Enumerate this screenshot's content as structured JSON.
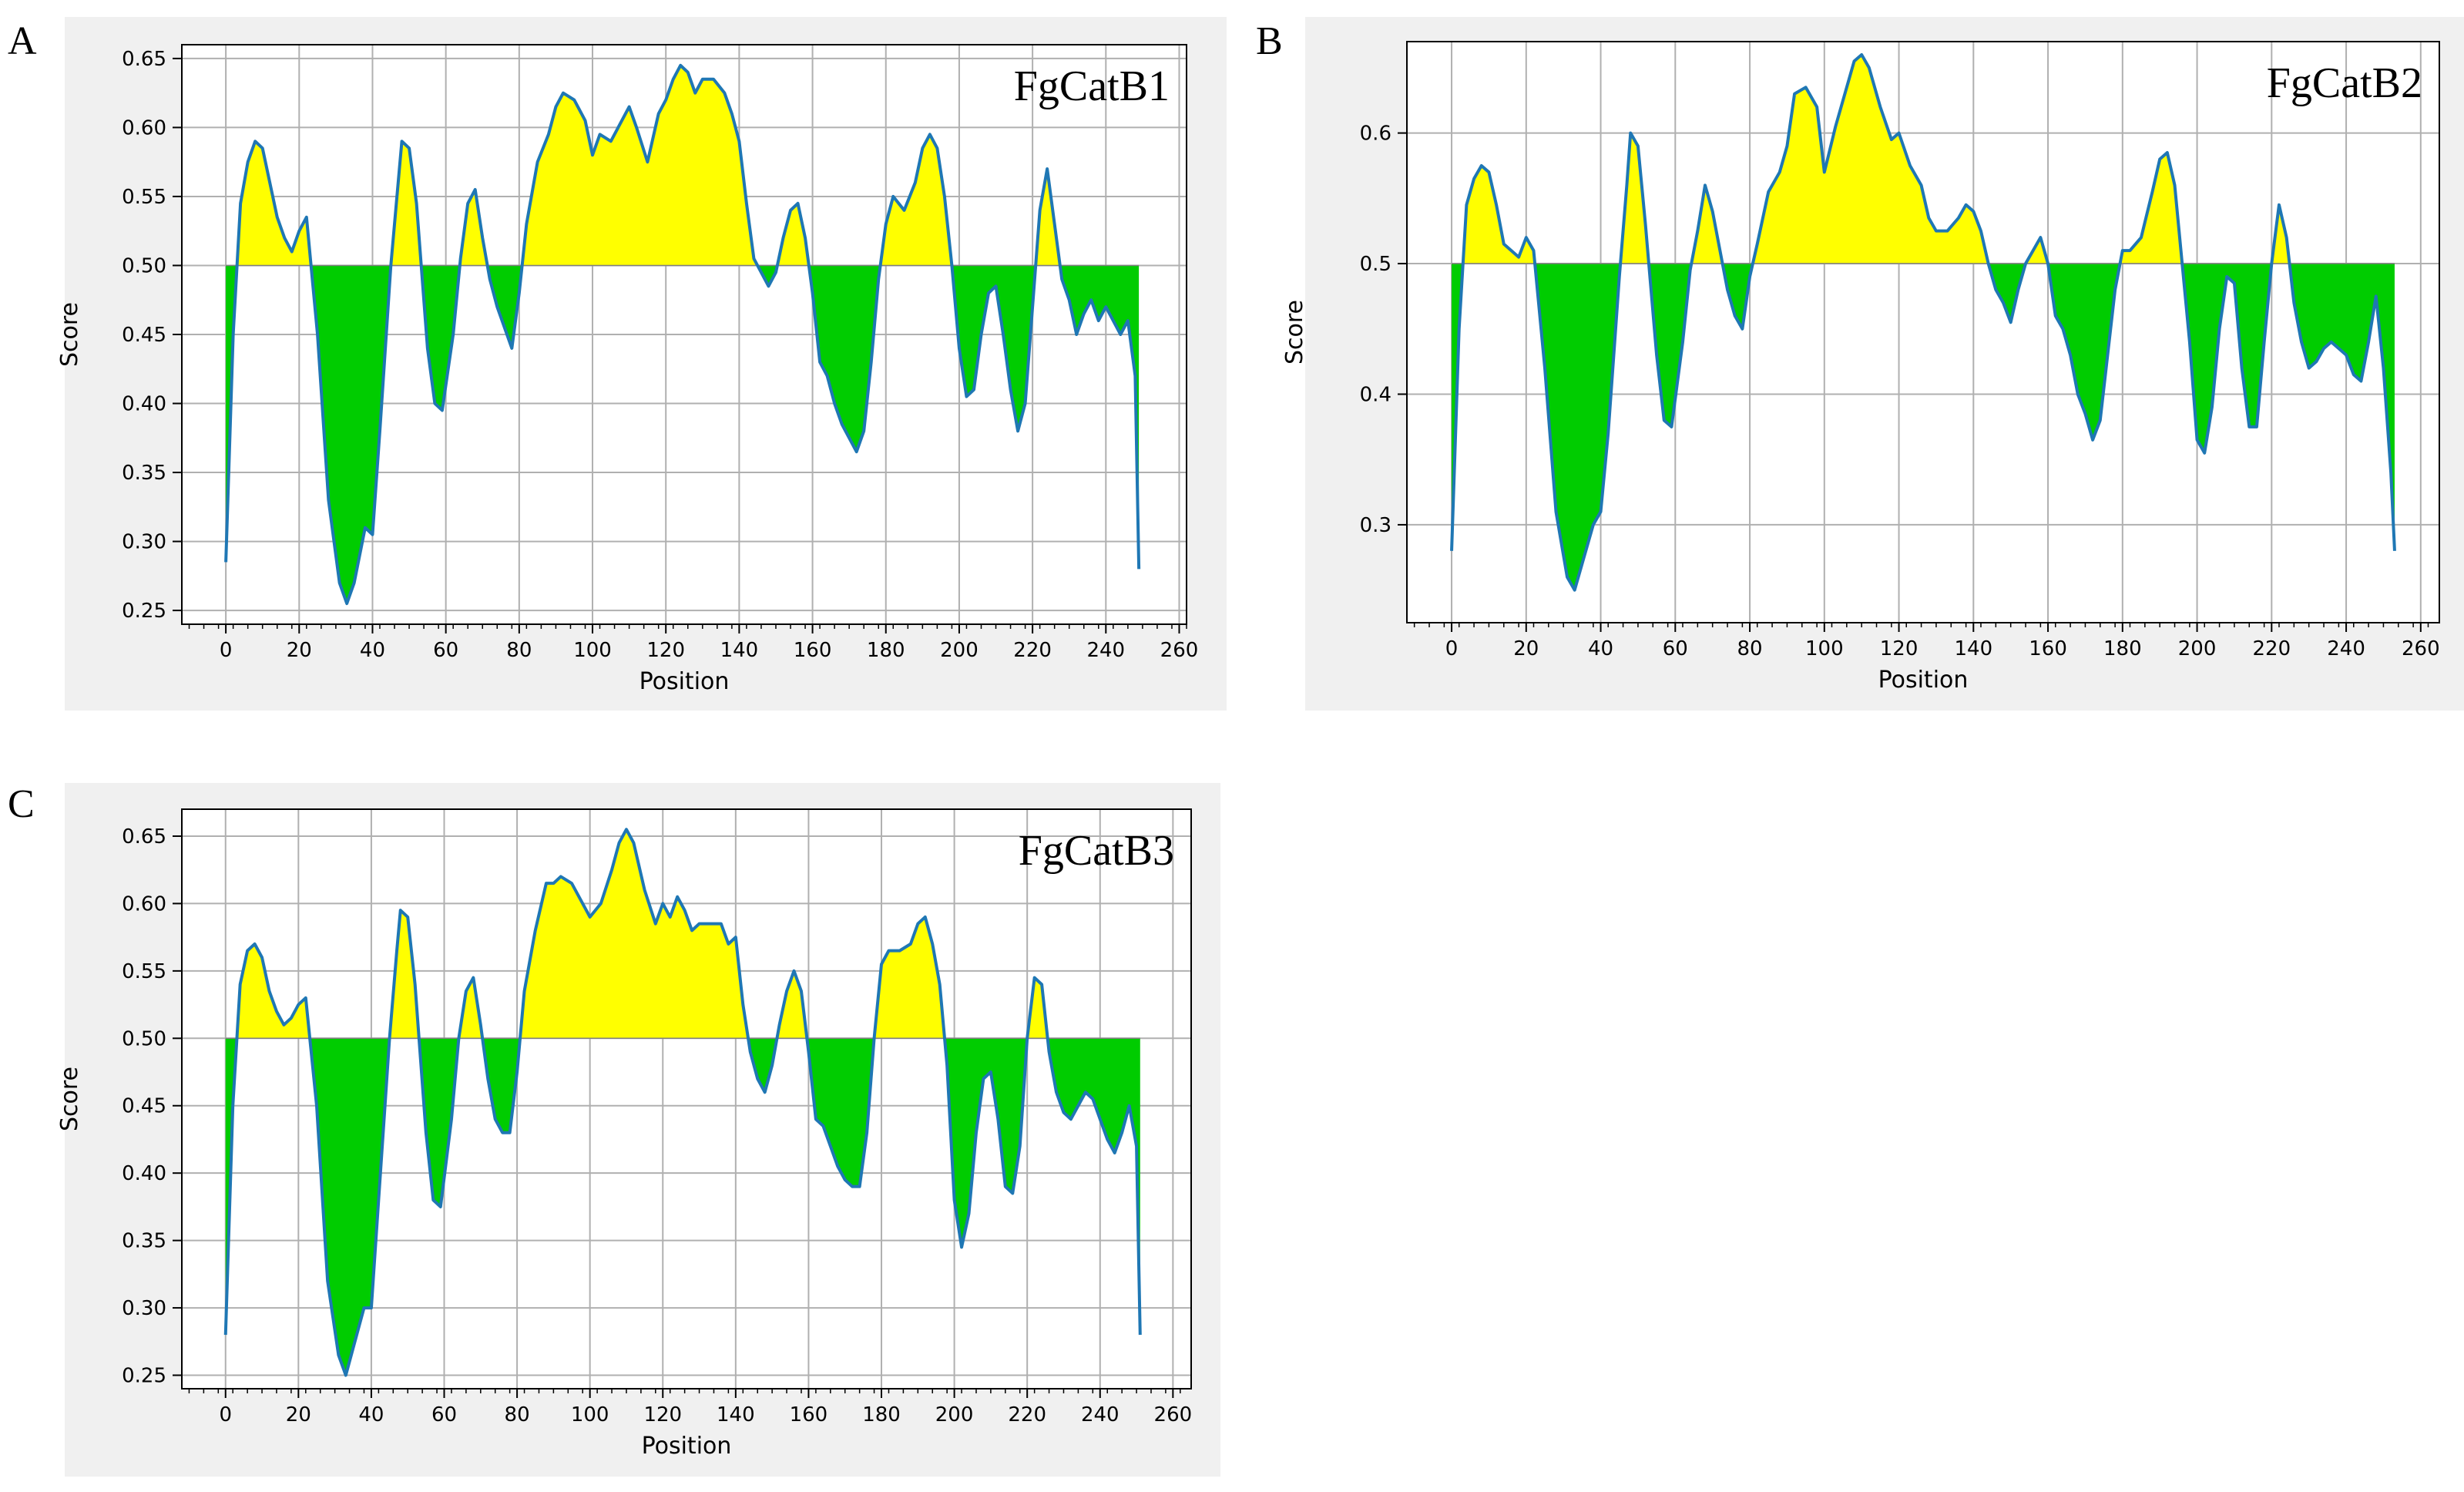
{
  "panels": [
    {
      "letter": "A"
    },
    {
      "letter": "B"
    },
    {
      "letter": "C"
    }
  ],
  "colors": {
    "line": "#1f77b4",
    "above_fill": "#ffff00",
    "below_fill": "#00cc00",
    "grid": "#b0b0b0",
    "panel_background": "#f0f0f0"
  },
  "chart_data": [
    {
      "type": "area",
      "title": "FgCatB1",
      "xlabel": "Position",
      "ylabel": "Score",
      "xlim": [
        -12,
        262
      ],
      "ylim": [
        0.24,
        0.66
      ],
      "xticks": [
        0,
        20,
        40,
        60,
        80,
        100,
        120,
        140,
        160,
        180,
        200,
        220,
        240,
        260
      ],
      "yticks": [
        0.25,
        0.3,
        0.35,
        0.4,
        0.45,
        0.5,
        0.55,
        0.6,
        0.65
      ],
      "ytick_labels": [
        "0.25",
        "0.30",
        "0.35",
        "0.40",
        "0.45",
        "0.50",
        "0.55",
        "0.60",
        "0.65"
      ],
      "threshold": 0.5,
      "grid": true,
      "series": [
        {
          "x": [
            0,
            2,
            4,
            6,
            8,
            10,
            12,
            14,
            16,
            18,
            20,
            22,
            25,
            28,
            31,
            33,
            35,
            38,
            40,
            42,
            45,
            47,
            48,
            50,
            52,
            55,
            57,
            59,
            62,
            64,
            66,
            68,
            70,
            72,
            74,
            76,
            78,
            80,
            82,
            85,
            88,
            90,
            92,
            95,
            98,
            100,
            102,
            105,
            108,
            110,
            112,
            115,
            118,
            120,
            122,
            124,
            126,
            128,
            130,
            133,
            136,
            138,
            140,
            142,
            144,
            146,
            148,
            150,
            152,
            154,
            156,
            158,
            160,
            162,
            164,
            166,
            168,
            170,
            172,
            174,
            176,
            178,
            180,
            182,
            185,
            188,
            190,
            192,
            194,
            196,
            198,
            200,
            202,
            204,
            206,
            208,
            210,
            212,
            214,
            216,
            218,
            220,
            222,
            224,
            226,
            228,
            230,
            232,
            234,
            236,
            238,
            240,
            242,
            244,
            246,
            248,
            249
          ],
          "y": [
            0.285,
            0.45,
            0.545,
            0.575,
            0.59,
            0.585,
            0.56,
            0.535,
            0.52,
            0.51,
            0.525,
            0.535,
            0.45,
            0.33,
            0.27,
            0.255,
            0.27,
            0.31,
            0.305,
            0.38,
            0.5,
            0.56,
            0.59,
            0.585,
            0.545,
            0.44,
            0.4,
            0.395,
            0.45,
            0.505,
            0.545,
            0.555,
            0.52,
            0.49,
            0.47,
            0.455,
            0.44,
            0.48,
            0.53,
            0.575,
            0.595,
            0.615,
            0.625,
            0.62,
            0.605,
            0.58,
            0.595,
            0.59,
            0.605,
            0.615,
            0.6,
            0.575,
            0.61,
            0.62,
            0.635,
            0.645,
            0.64,
            0.625,
            0.635,
            0.635,
            0.625,
            0.61,
            0.59,
            0.545,
            0.505,
            0.495,
            0.485,
            0.495,
            0.52,
            0.54,
            0.545,
            0.52,
            0.48,
            0.43,
            0.42,
            0.4,
            0.385,
            0.375,
            0.365,
            0.38,
            0.43,
            0.49,
            0.53,
            0.55,
            0.54,
            0.56,
            0.585,
            0.595,
            0.585,
            0.55,
            0.5,
            0.44,
            0.405,
            0.41,
            0.45,
            0.48,
            0.485,
            0.45,
            0.41,
            0.38,
            0.4,
            0.47,
            0.54,
            0.57,
            0.53,
            0.49,
            0.475,
            0.45,
            0.465,
            0.475,
            0.46,
            0.47,
            0.46,
            0.45,
            0.46,
            0.42,
            0.28
          ]
        }
      ]
    },
    {
      "type": "area",
      "title": "FgCatB2",
      "xlabel": "Position",
      "ylabel": "Score",
      "xlim": [
        -12,
        265
      ],
      "ylim": [
        0.225,
        0.67
      ],
      "xticks": [
        0,
        20,
        40,
        60,
        80,
        100,
        120,
        140,
        160,
        180,
        200,
        220,
        240,
        260
      ],
      "yticks": [
        0.3,
        0.4,
        0.5,
        0.6
      ],
      "ytick_labels": [
        "0.3",
        "0.4",
        "0.5",
        "0.6"
      ],
      "threshold": 0.5,
      "grid": true,
      "series": [
        {
          "x": [
            0,
            2,
            4,
            6,
            8,
            10,
            12,
            14,
            16,
            18,
            20,
            22,
            25,
            28,
            31,
            33,
            35,
            38,
            40,
            42,
            45,
            47,
            48,
            50,
            52,
            55,
            57,
            59,
            62,
            64,
            66,
            68,
            70,
            72,
            74,
            76,
            78,
            80,
            82,
            85,
            88,
            90,
            92,
            95,
            98,
            100,
            103,
            106,
            108,
            110,
            112,
            115,
            118,
            120,
            123,
            126,
            128,
            130,
            133,
            136,
            138,
            140,
            142,
            144,
            146,
            148,
            150,
            152,
            154,
            156,
            158,
            160,
            162,
            164,
            166,
            168,
            170,
            172,
            174,
            176,
            178,
            180,
            182,
            185,
            188,
            190,
            192,
            194,
            196,
            198,
            200,
            202,
            204,
            206,
            208,
            210,
            212,
            214,
            216,
            218,
            220,
            222,
            224,
            226,
            228,
            230,
            232,
            234,
            236,
            238,
            240,
            242,
            244,
            246,
            248,
            250,
            252,
            253
          ],
          "y": [
            0.28,
            0.45,
            0.545,
            0.565,
            0.575,
            0.57,
            0.545,
            0.515,
            0.51,
            0.505,
            0.52,
            0.51,
            0.42,
            0.31,
            0.26,
            0.25,
            0.27,
            0.3,
            0.31,
            0.37,
            0.49,
            0.56,
            0.6,
            0.59,
            0.53,
            0.43,
            0.38,
            0.375,
            0.44,
            0.495,
            0.525,
            0.56,
            0.54,
            0.51,
            0.48,
            0.46,
            0.45,
            0.49,
            0.515,
            0.555,
            0.57,
            0.59,
            0.63,
            0.635,
            0.62,
            0.57,
            0.605,
            0.635,
            0.655,
            0.66,
            0.65,
            0.62,
            0.595,
            0.6,
            0.575,
            0.56,
            0.535,
            0.525,
            0.525,
            0.535,
            0.545,
            0.54,
            0.525,
            0.5,
            0.48,
            0.47,
            0.455,
            0.48,
            0.5,
            0.51,
            0.52,
            0.5,
            0.46,
            0.45,
            0.43,
            0.4,
            0.385,
            0.365,
            0.38,
            0.43,
            0.48,
            0.51,
            0.51,
            0.52,
            0.555,
            0.58,
            0.585,
            0.56,
            0.5,
            0.44,
            0.365,
            0.355,
            0.39,
            0.45,
            0.49,
            0.485,
            0.42,
            0.375,
            0.375,
            0.44,
            0.5,
            0.545,
            0.52,
            0.47,
            0.44,
            0.42,
            0.425,
            0.435,
            0.44,
            0.435,
            0.43,
            0.415,
            0.41,
            0.44,
            0.475,
            0.42,
            0.34,
            0.28
          ]
        }
      ]
    },
    {
      "type": "area",
      "title": "FgCatB3",
      "xlabel": "Position",
      "ylabel": "Score",
      "xlim": [
        -12,
        265
      ],
      "ylim": [
        0.24,
        0.67
      ],
      "xticks": [
        0,
        20,
        40,
        60,
        80,
        100,
        120,
        140,
        160,
        180,
        200,
        220,
        240,
        260
      ],
      "yticks": [
        0.25,
        0.3,
        0.35,
        0.4,
        0.45,
        0.5,
        0.55,
        0.6,
        0.65
      ],
      "ytick_labels": [
        "0.25",
        "0.30",
        "0.35",
        "0.40",
        "0.45",
        "0.50",
        "0.55",
        "0.60",
        "0.65"
      ],
      "threshold": 0.5,
      "grid": true,
      "series": [
        {
          "x": [
            0,
            2,
            4,
            6,
            8,
            10,
            12,
            14,
            16,
            18,
            20,
            22,
            25,
            28,
            31,
            33,
            35,
            38,
            40,
            42,
            45,
            47,
            48,
            50,
            52,
            55,
            57,
            59,
            62,
            64,
            66,
            68,
            70,
            72,
            74,
            76,
            78,
            80,
            82,
            85,
            88,
            90,
            92,
            95,
            98,
            100,
            103,
            106,
            108,
            110,
            112,
            115,
            118,
            120,
            122,
            124,
            126,
            128,
            130,
            133,
            136,
            138,
            140,
            142,
            144,
            146,
            148,
            150,
            152,
            154,
            156,
            158,
            160,
            162,
            164,
            166,
            168,
            170,
            172,
            174,
            176,
            178,
            180,
            182,
            185,
            188,
            190,
            192,
            194,
            196,
            198,
            200,
            202,
            204,
            206,
            208,
            210,
            212,
            214,
            216,
            218,
            220,
            222,
            224,
            226,
            228,
            230,
            232,
            234,
            236,
            238,
            240,
            242,
            244,
            246,
            248,
            250,
            251
          ],
          "y": [
            0.28,
            0.45,
            0.54,
            0.565,
            0.57,
            0.56,
            0.535,
            0.52,
            0.51,
            0.515,
            0.525,
            0.53,
            0.45,
            0.32,
            0.265,
            0.25,
            0.27,
            0.3,
            0.3,
            0.38,
            0.5,
            0.565,
            0.595,
            0.59,
            0.54,
            0.43,
            0.38,
            0.375,
            0.44,
            0.5,
            0.535,
            0.545,
            0.51,
            0.47,
            0.44,
            0.43,
            0.43,
            0.475,
            0.535,
            0.58,
            0.615,
            0.615,
            0.62,
            0.615,
            0.6,
            0.59,
            0.6,
            0.625,
            0.645,
            0.655,
            0.645,
            0.61,
            0.585,
            0.6,
            0.59,
            0.605,
            0.595,
            0.58,
            0.585,
            0.585,
            0.585,
            0.57,
            0.575,
            0.525,
            0.49,
            0.47,
            0.46,
            0.48,
            0.51,
            0.535,
            0.55,
            0.535,
            0.49,
            0.44,
            0.435,
            0.42,
            0.405,
            0.395,
            0.39,
            0.39,
            0.43,
            0.5,
            0.555,
            0.565,
            0.565,
            0.57,
            0.585,
            0.59,
            0.57,
            0.54,
            0.48,
            0.38,
            0.345,
            0.37,
            0.43,
            0.47,
            0.475,
            0.44,
            0.39,
            0.385,
            0.42,
            0.5,
            0.545,
            0.54,
            0.49,
            0.46,
            0.445,
            0.44,
            0.45,
            0.46,
            0.455,
            0.44,
            0.425,
            0.415,
            0.43,
            0.45,
            0.42,
            0.28
          ]
        }
      ]
    }
  ]
}
